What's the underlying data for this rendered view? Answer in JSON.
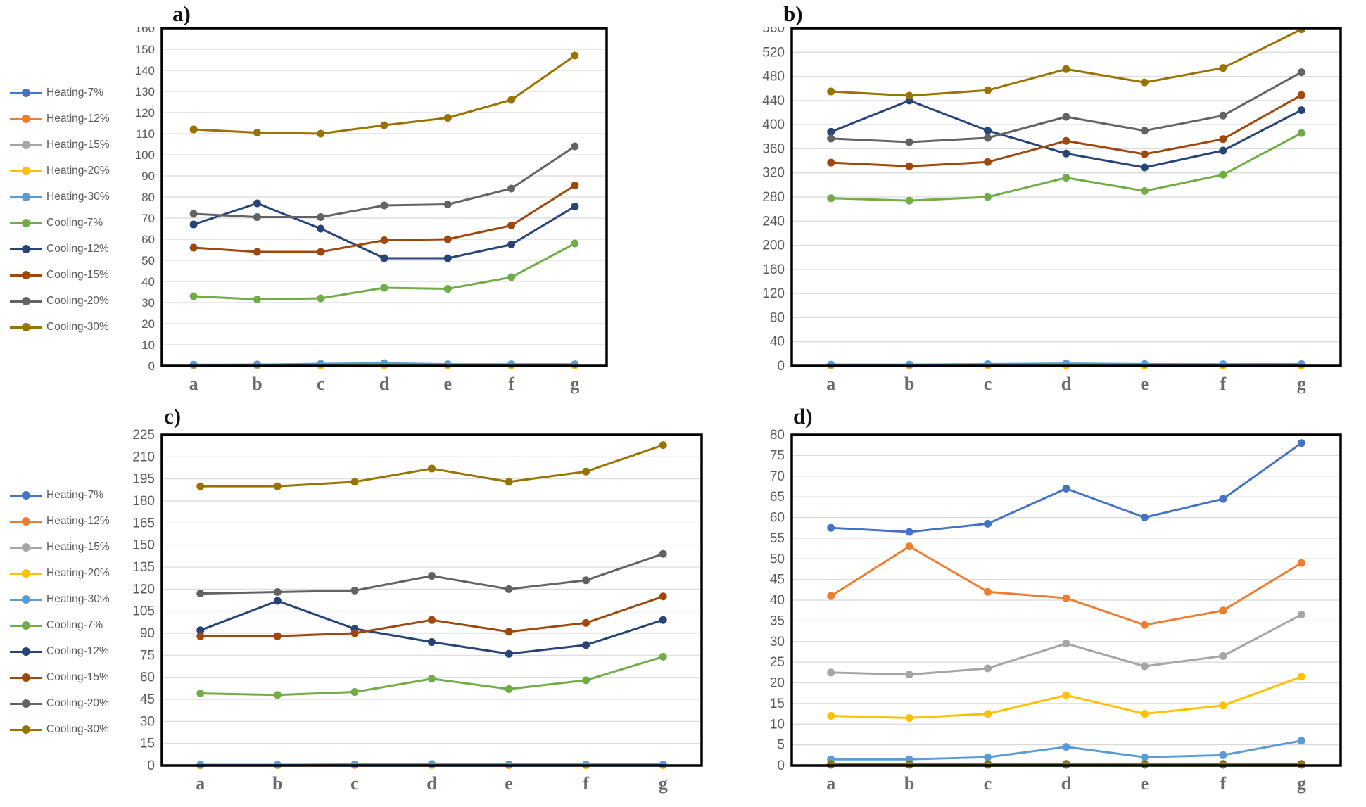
{
  "figure_type": "four-panel line chart figure",
  "legend": {
    "items": [
      {
        "label": "Heating-7%",
        "color": "#4472C4"
      },
      {
        "label": "Heating-12%",
        "color": "#ED7D31"
      },
      {
        "label": "Heating-15%",
        "color": "#A5A5A5"
      },
      {
        "label": "Heating-20%",
        "color": "#FFC000"
      },
      {
        "label": "Heating-30%",
        "color": "#5B9BD5"
      },
      {
        "label": "Cooling-7%",
        "color": "#70AD47"
      },
      {
        "label": "Cooling-12%",
        "color": "#264478"
      },
      {
        "label": "Cooling-15%",
        "color": "#9E480E"
      },
      {
        "label": "Cooling-20%",
        "color": "#636363"
      },
      {
        "label": "Cooling-30%",
        "color": "#997300"
      }
    ]
  },
  "chart_data": [
    {
      "type": "line",
      "title": "a)",
      "categories": [
        "a",
        "b",
        "c",
        "d",
        "e",
        "f",
        "g"
      ],
      "ylim": [
        0,
        160
      ],
      "ytick": 10,
      "grid": true,
      "legend_position": "left-shared",
      "series": [
        {
          "name": "Heating-7%",
          "color": "#4472C4",
          "values": [
            0.4,
            0.4,
            0.6,
            0.9,
            0.5,
            0.5,
            0.5
          ]
        },
        {
          "name": "Heating-12%",
          "color": "#ED7D31",
          "values": [
            0.3,
            0.7,
            0.4,
            0.6,
            0.4,
            0.3,
            0.4
          ]
        },
        {
          "name": "Heating-15%",
          "color": "#A5A5A5",
          "values": [
            0.2,
            0.3,
            0.3,
            0.5,
            0.3,
            0.2,
            0.3
          ]
        },
        {
          "name": "Heating-20%",
          "color": "#FFC000",
          "values": [
            0.2,
            0.2,
            0.3,
            0.4,
            0.2,
            0.2,
            0.2
          ]
        },
        {
          "name": "Heating-30%",
          "color": "#5B9BD5",
          "values": [
            0.6,
            0.6,
            1.0,
            1.3,
            0.8,
            0.8,
            0.8
          ]
        },
        {
          "name": "Cooling-7%",
          "color": "#70AD47",
          "values": [
            33,
            31.5,
            32,
            37,
            36.5,
            42,
            58
          ]
        },
        {
          "name": "Cooling-12%",
          "color": "#264478",
          "values": [
            67,
            77,
            65,
            51,
            51,
            57.5,
            75.5
          ]
        },
        {
          "name": "Cooling-15%",
          "color": "#9E480E",
          "values": [
            56,
            54,
            54,
            59.5,
            60,
            66.5,
            85.5
          ]
        },
        {
          "name": "Cooling-20%",
          "color": "#636363",
          "values": [
            72,
            70.5,
            70.5,
            76,
            76.5,
            84,
            104
          ]
        },
        {
          "name": "Cooling-30%",
          "color": "#997300",
          "values": [
            112,
            110.5,
            110,
            114,
            117.5,
            126,
            147
          ]
        }
      ]
    },
    {
      "type": "line",
      "title": "b)",
      "categories": [
        "a",
        "b",
        "c",
        "d",
        "e",
        "f",
        "g"
      ],
      "ylim": [
        0,
        560
      ],
      "ytick": 40,
      "grid": true,
      "legend_position": "left-shared",
      "series": [
        {
          "name": "Heating-7%",
          "color": "#4472C4",
          "values": [
            1.2,
            1.2,
            1.6,
            2.2,
            1.6,
            1.5,
            1.6
          ]
        },
        {
          "name": "Heating-12%",
          "color": "#ED7D31",
          "values": [
            1.0,
            1.4,
            1.1,
            1.5,
            1.1,
            1.0,
            1.1
          ]
        },
        {
          "name": "Heating-15%",
          "color": "#A5A5A5",
          "values": [
            0.8,
            0.9,
            1.0,
            1.2,
            1.0,
            0.8,
            0.9
          ]
        },
        {
          "name": "Heating-20%",
          "color": "#FFC000",
          "values": [
            0.6,
            0.6,
            0.8,
            1.0,
            0.8,
            0.7,
            0.8
          ]
        },
        {
          "name": "Heating-30%",
          "color": "#5B9BD5",
          "values": [
            2.2,
            2.2,
            3.0,
            4.0,
            3.0,
            2.8,
            3.0
          ]
        },
        {
          "name": "Cooling-7%",
          "color": "#70AD47",
          "values": [
            278,
            274,
            280,
            312,
            290,
            317,
            386
          ]
        },
        {
          "name": "Cooling-12%",
          "color": "#264478",
          "values": [
            388,
            440,
            390,
            352,
            329,
            357,
            424
          ]
        },
        {
          "name": "Cooling-15%",
          "color": "#9E480E",
          "values": [
            337,
            331,
            338,
            373,
            351,
            376,
            449
          ]
        },
        {
          "name": "Cooling-20%",
          "color": "#636363",
          "values": [
            377,
            371,
            378,
            413,
            390,
            415,
            487
          ]
        },
        {
          "name": "Cooling-30%",
          "color": "#997300",
          "values": [
            455,
            448,
            457,
            492,
            470,
            494,
            558
          ]
        }
      ]
    },
    {
      "type": "line",
      "title": "c)",
      "categories": [
        "a",
        "b",
        "c",
        "d",
        "e",
        "f",
        "g"
      ],
      "ylim": [
        0,
        225
      ],
      "ytick": 15,
      "grid": true,
      "legend_position": "left-shared",
      "series": [
        {
          "name": "Heating-7%",
          "color": "#4472C4",
          "values": [
            0.4,
            0.4,
            0.5,
            0.8,
            0.5,
            0.5,
            0.5
          ]
        },
        {
          "name": "Heating-12%",
          "color": "#ED7D31",
          "values": [
            0.3,
            0.5,
            0.4,
            0.5,
            0.4,
            0.3,
            0.4
          ]
        },
        {
          "name": "Heating-15%",
          "color": "#A5A5A5",
          "values": [
            0.3,
            0.3,
            0.3,
            0.4,
            0.3,
            0.3,
            0.3
          ]
        },
        {
          "name": "Heating-20%",
          "color": "#FFC000",
          "values": [
            0.2,
            0.2,
            0.3,
            0.3,
            0.2,
            0.2,
            0.2
          ]
        },
        {
          "name": "Heating-30%",
          "color": "#5B9BD5",
          "values": [
            0.5,
            0.5,
            0.8,
            1.0,
            0.7,
            0.7,
            0.7
          ]
        },
        {
          "name": "Cooling-7%",
          "color": "#70AD47",
          "values": [
            49,
            48,
            50,
            59,
            52,
            58,
            74
          ]
        },
        {
          "name": "Cooling-12%",
          "color": "#264478",
          "values": [
            92,
            112,
            93,
            84,
            76,
            82,
            99
          ]
        },
        {
          "name": "Cooling-15%",
          "color": "#9E480E",
          "values": [
            88,
            88,
            90,
            99,
            91,
            97,
            115
          ]
        },
        {
          "name": "Cooling-20%",
          "color": "#636363",
          "values": [
            117,
            118,
            119,
            129,
            120,
            126,
            144
          ]
        },
        {
          "name": "Cooling-30%",
          "color": "#997300",
          "values": [
            190,
            190,
            193,
            202,
            193,
            200,
            218
          ]
        }
      ]
    },
    {
      "type": "line",
      "title": "d)",
      "categories": [
        "a",
        "b",
        "c",
        "d",
        "e",
        "f",
        "g"
      ],
      "ylim": [
        0,
        80
      ],
      "ytick": 5,
      "grid": true,
      "legend_position": "left-shared",
      "series": [
        {
          "name": "Heating-7%",
          "color": "#4472C4",
          "values": [
            57.5,
            56.5,
            58.5,
            67,
            60,
            64.5,
            78
          ]
        },
        {
          "name": "Heating-12%",
          "color": "#ED7D31",
          "values": [
            41,
            53,
            42,
            40.5,
            34,
            37.5,
            49
          ]
        },
        {
          "name": "Heating-15%",
          "color": "#A5A5A5",
          "values": [
            22.5,
            22,
            23.5,
            29.5,
            24,
            26.5,
            36.5
          ]
        },
        {
          "name": "Heating-20%",
          "color": "#FFC000",
          "values": [
            12,
            11.5,
            12.5,
            17,
            12.5,
            14.5,
            21.5
          ]
        },
        {
          "name": "Heating-30%",
          "color": "#5B9BD5",
          "values": [
            1.5,
            1.5,
            2,
            4.5,
            2,
            2.5,
            6
          ]
        },
        {
          "name": "Cooling-7%",
          "color": "#70AD47",
          "values": [
            0.4,
            0.4,
            0.4,
            0.4,
            0.4,
            0.4,
            0.4
          ]
        },
        {
          "name": "Cooling-12%",
          "color": "#264478",
          "values": [
            0.3,
            0.3,
            0.3,
            0.3,
            0.3,
            0.3,
            0.3
          ]
        },
        {
          "name": "Cooling-15%",
          "color": "#9E480E",
          "values": [
            0.3,
            0.3,
            0.3,
            0.3,
            0.3,
            0.3,
            0.3
          ]
        },
        {
          "name": "Cooling-20%",
          "color": "#636363",
          "values": [
            0.2,
            0.2,
            0.2,
            0.2,
            0.2,
            0.2,
            0.2
          ]
        },
        {
          "name": "Cooling-30%",
          "color": "#997300",
          "values": [
            0.2,
            0.2,
            0.2,
            0.2,
            0.2,
            0.2,
            0.2
          ]
        }
      ]
    }
  ]
}
